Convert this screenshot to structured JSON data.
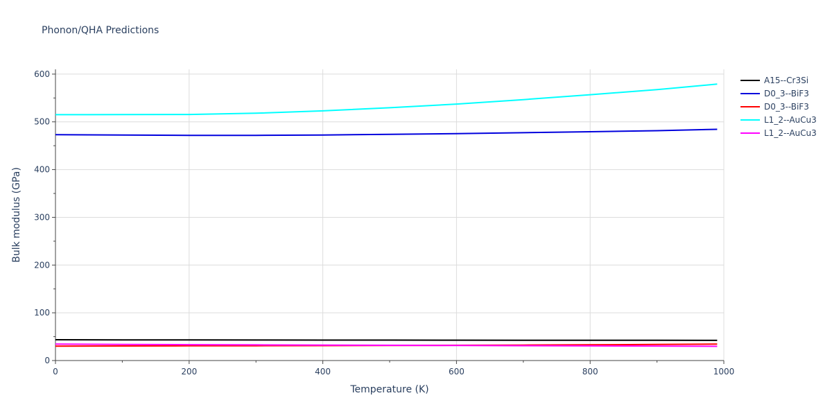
{
  "chart_data": {
    "type": "line",
    "title": "Phonon/QHA Predictions",
    "xlabel": "Temperature (K)",
    "ylabel": "Bulk modulus (GPa)",
    "xlim": [
      0,
      1000
    ],
    "ylim": [
      0,
      610
    ],
    "x_ticks": [
      0,
      200,
      400,
      600,
      800,
      1000
    ],
    "y_ticks": [
      0,
      100,
      200,
      300,
      400,
      500,
      600
    ],
    "grid": true,
    "legend_position": "top-right",
    "series": [
      {
        "name": "A15--Cr3Si",
        "color": "#000000",
        "x": [
          0,
          100,
          200,
          300,
          400,
          500,
          600,
          700,
          800,
          900,
          990
        ],
        "y": [
          43.5,
          43.3,
          43.1,
          43.0,
          42.9,
          42.8,
          42.7,
          42.6,
          42.5,
          42.4,
          42.3
        ]
      },
      {
        "name": "D0_3--BiF3",
        "color": "#0000dd",
        "x": [
          0,
          100,
          200,
          300,
          400,
          500,
          600,
          700,
          800,
          900,
          990
        ],
        "y": [
          473,
          472.3,
          471.8,
          471.8,
          472.5,
          473.8,
          475.3,
          477.2,
          479.3,
          481.5,
          484.3
        ]
      },
      {
        "name": "D0_3--BiF3",
        "color": "#ff0000",
        "x": [
          0,
          100,
          200,
          300,
          400,
          500,
          600,
          700,
          800,
          900,
          990
        ],
        "y": [
          30.2,
          30.5,
          30.8,
          31.0,
          31.2,
          31.5,
          31.9,
          32.4,
          33.0,
          33.7,
          34.4
        ]
      },
      {
        "name": "L1_2--AuCu3",
        "color": "#00ffff",
        "x": [
          0,
          100,
          200,
          300,
          400,
          500,
          600,
          700,
          800,
          900,
          990
        ],
        "y": [
          515,
          515.2,
          515.5,
          518,
          523,
          529.5,
          537.3,
          546.5,
          556.8,
          567.5,
          579
        ]
      },
      {
        "name": "L1_2--AuCu3",
        "color": "#ff00ff",
        "x": [
          0,
          100,
          200,
          300,
          400,
          500,
          600,
          700,
          800,
          900,
          990
        ],
        "y": [
          34.5,
          33.9,
          33.3,
          32.8,
          32.3,
          31.9,
          31.5,
          31.1,
          30.7,
          30.3,
          29.8
        ]
      }
    ]
  }
}
